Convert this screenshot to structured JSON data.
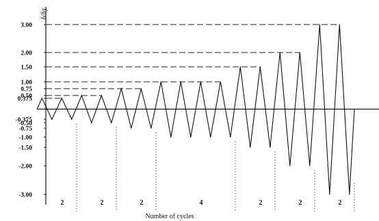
{
  "chart_data": {
    "type": "line",
    "ylabel": "δ/δy",
    "xlabel": "Number of cycles",
    "ylim": [
      -3.3,
      3.3
    ],
    "y_ticks_positive": [
      "3.00",
      "2.00",
      "1.50",
      "1.00",
      "0.75",
      "0.50",
      "0.375"
    ],
    "y_ticks_negative": [
      "-0.375",
      "-0.50",
      "-0.75",
      "-1.00",
      "-1.50",
      "-2.00",
      "-3.00"
    ],
    "y_tick_values_positive": [
      3.0,
      2.0,
      1.5,
      1.0,
      0.75,
      0.5,
      0.375
    ],
    "y_tick_values_negative": [
      -0.375,
      -0.5,
      -0.75,
      -1.0,
      -1.5,
      -2.0,
      -3.0
    ],
    "groups": [
      {
        "amplitude": 0.375,
        "cycles": 2,
        "label": "2"
      },
      {
        "amplitude": 0.5,
        "cycles": 2,
        "label": "2"
      },
      {
        "amplitude": 0.75,
        "cycles": 2,
        "label": "2"
      },
      {
        "amplitude": 1.0,
        "cycles": 4,
        "label": "4"
      },
      {
        "amplitude": 1.5,
        "cycles": 2,
        "label": "2"
      },
      {
        "amplitude": 2.0,
        "cycles": 2,
        "label": "2"
      },
      {
        "amplitude": 3.0,
        "cycles": 2,
        "label": "2"
      }
    ],
    "legend": "none",
    "grid": false
  }
}
